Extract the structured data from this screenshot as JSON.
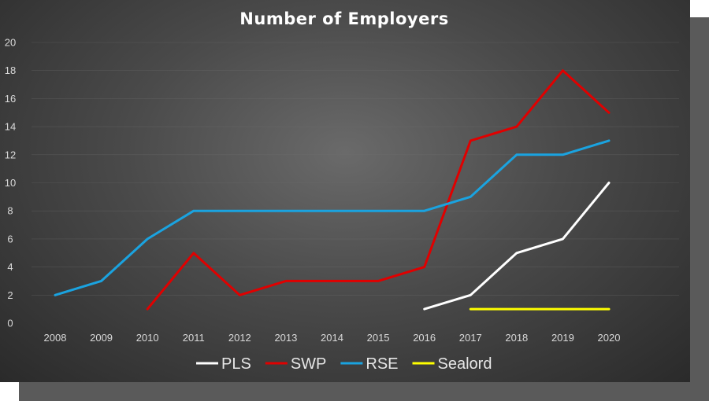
{
  "chart_data": {
    "type": "line",
    "title": "Number of Employers",
    "categories": [
      "2008",
      "2009",
      "2010",
      "2011",
      "2012",
      "2013",
      "2014",
      "2015",
      "2016",
      "2017",
      "2018",
      "2019",
      "2020"
    ],
    "ylim": [
      0,
      20
    ],
    "yticks": [
      0,
      2,
      4,
      6,
      8,
      10,
      12,
      14,
      16,
      18,
      20
    ],
    "grid": true,
    "legend_position": "bottom",
    "series": [
      {
        "name": "PLS",
        "color": "#ffffff",
        "values": [
          null,
          null,
          null,
          null,
          null,
          null,
          null,
          null,
          1,
          2,
          5,
          6,
          10
        ]
      },
      {
        "name": "SWP",
        "color": "#e00000",
        "values": [
          null,
          null,
          1,
          5,
          2,
          3,
          3,
          3,
          4,
          13,
          14,
          18,
          15
        ]
      },
      {
        "name": "RSE",
        "color": "#1aa3e0",
        "values": [
          2,
          3,
          6,
          8,
          8,
          8,
          8,
          8,
          8,
          9,
          12,
          12,
          13
        ]
      },
      {
        "name": "Sealord",
        "color": "#ffff00",
        "values": [
          null,
          null,
          null,
          null,
          null,
          null,
          null,
          null,
          null,
          1,
          1,
          1,
          1
        ]
      }
    ]
  }
}
